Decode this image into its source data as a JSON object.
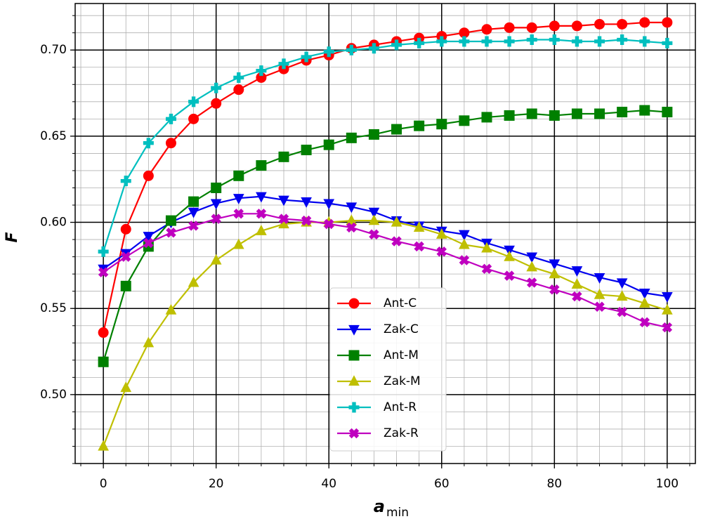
{
  "chart_data": {
    "type": "line",
    "xlabel": "a",
    "xlabel_sub": "min",
    "ylabel": "F",
    "x": [
      0,
      4,
      8,
      12,
      16,
      20,
      24,
      28,
      32,
      36,
      40,
      44,
      48,
      52,
      56,
      60,
      64,
      68,
      72,
      76,
      80,
      84,
      88,
      92,
      96,
      100
    ],
    "xlim": [
      -5,
      105
    ],
    "ylim": [
      0.46,
      0.727
    ],
    "xticks": [
      0,
      20,
      40,
      60,
      80,
      100
    ],
    "yticks": [
      {
        "value": 0.5,
        "label": "0.50"
      },
      0.55,
      {
        "value": 0.6,
        "label": "0.60"
      },
      0.65,
      {
        "value": 0.7,
        "label": "0.70"
      }
    ],
    "grid": true,
    "minor_grid": {
      "x": 4,
      "y": 0.01
    },
    "legend": "lower center",
    "series": [
      {
        "name": "Ant-C",
        "color": "#ff0000",
        "marker": "circle",
        "values": [
          0.536,
          0.596,
          0.627,
          0.646,
          0.66,
          0.669,
          0.677,
          0.684,
          0.689,
          0.694,
          0.697,
          0.701,
          0.703,
          0.705,
          0.707,
          0.708,
          0.71,
          0.712,
          0.713,
          0.713,
          0.714,
          0.714,
          0.715,
          0.715,
          0.716,
          0.716
        ]
      },
      {
        "name": "Zak-C",
        "color": "#0000ee",
        "marker": "triangle-down",
        "values": [
          0.573,
          0.582,
          0.592,
          0.6,
          0.606,
          0.611,
          0.614,
          0.615,
          0.613,
          0.612,
          0.611,
          0.609,
          0.606,
          0.601,
          0.598,
          0.595,
          0.593,
          0.588,
          0.584,
          0.58,
          0.576,
          0.572,
          0.568,
          0.565,
          0.559,
          0.557
        ]
      },
      {
        "name": "Ant-M",
        "color": "#008000",
        "marker": "square",
        "values": [
          0.519,
          0.563,
          0.586,
          0.601,
          0.612,
          0.62,
          0.627,
          0.633,
          0.638,
          0.642,
          0.645,
          0.649,
          0.651,
          0.654,
          0.656,
          0.657,
          0.659,
          0.661,
          0.662,
          0.663,
          0.662,
          0.663,
          0.663,
          0.664,
          0.665,
          0.664
        ]
      },
      {
        "name": "Zak-M",
        "color": "#bfbf00",
        "marker": "triangle-up",
        "values": [
          0.47,
          0.504,
          0.53,
          0.549,
          0.565,
          0.578,
          0.587,
          0.595,
          0.599,
          0.6,
          0.6,
          0.601,
          0.601,
          0.6,
          0.597,
          0.593,
          0.587,
          0.585,
          0.58,
          0.574,
          0.57,
          0.564,
          0.558,
          0.557,
          0.553,
          0.549
        ]
      },
      {
        "name": "Ant-R",
        "color": "#00bfbf",
        "marker": "plus",
        "values": [
          0.583,
          0.624,
          0.646,
          0.66,
          0.67,
          0.678,
          0.684,
          0.688,
          0.692,
          0.696,
          0.699,
          0.7,
          0.701,
          0.703,
          0.704,
          0.705,
          0.705,
          0.705,
          0.705,
          0.706,
          0.706,
          0.705,
          0.705,
          0.706,
          0.705,
          0.704
        ]
      },
      {
        "name": "Zak-R",
        "color": "#bf00bf",
        "marker": "x",
        "values": [
          0.571,
          0.58,
          0.588,
          0.594,
          0.598,
          0.602,
          0.605,
          0.605,
          0.602,
          0.601,
          0.599,
          0.597,
          0.593,
          0.589,
          0.586,
          0.583,
          0.578,
          0.573,
          0.569,
          0.565,
          0.561,
          0.557,
          0.551,
          0.548,
          0.542,
          0.539
        ]
      }
    ]
  }
}
